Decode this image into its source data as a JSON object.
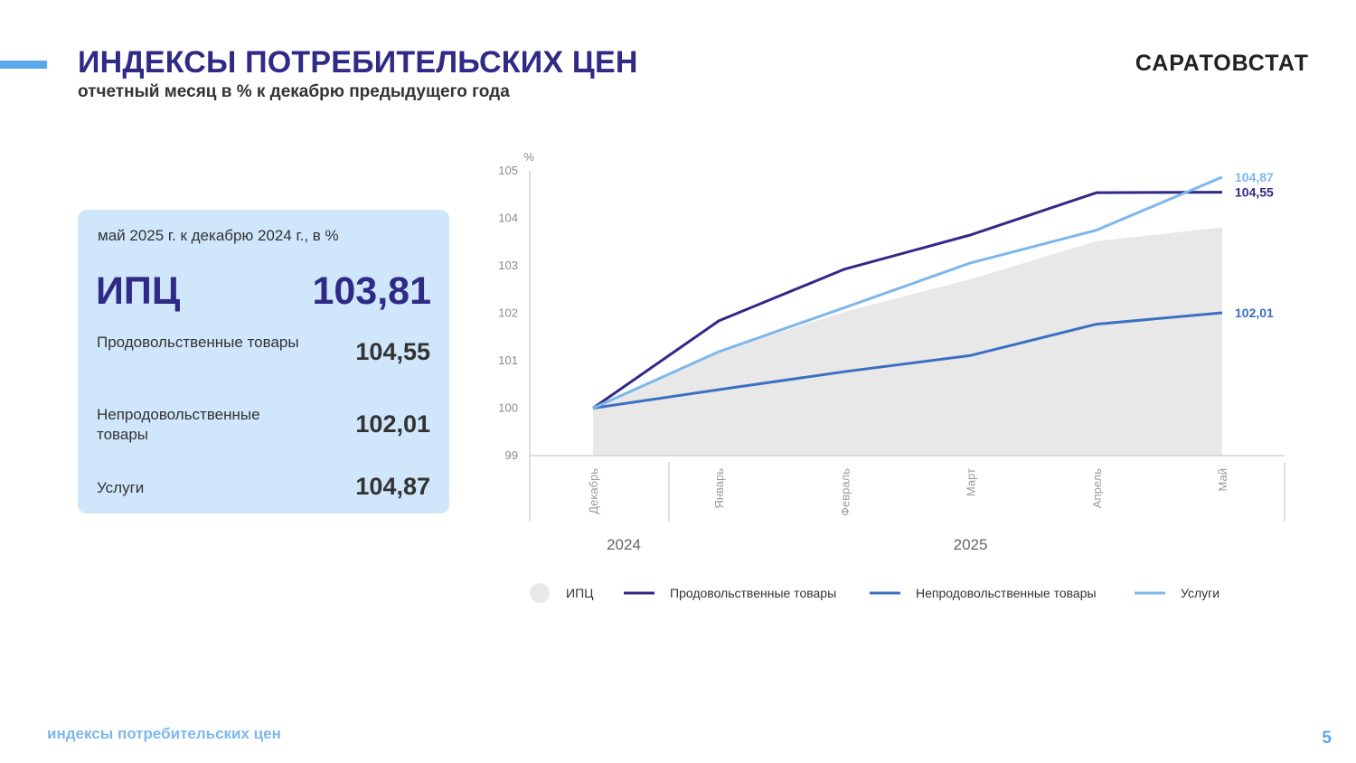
{
  "header": {
    "title": "ИНДЕКСЫ ПОТРЕБИТЕЛЬСКИХ ЦЕН",
    "subtitle": "отчетный месяц в % к декабрю предыдущего года",
    "brand": "САРАТОВСТАТ"
  },
  "card": {
    "caption": "май 2025 г. к декабрю 2024 г., в %",
    "cpi_label": "ИПЦ",
    "cpi_value": "103,81",
    "rows": [
      {
        "label": "Продовольственные товары",
        "value": "104,55"
      },
      {
        "label": "Непродовольственные товары",
        "value": "102,01"
      },
      {
        "label": "Услуги",
        "value": "104,87"
      }
    ]
  },
  "chart_data": {
    "type": "line",
    "ylabel": "%",
    "ylim": [
      99,
      105
    ],
    "yticks": [
      "99",
      "100",
      "101",
      "102",
      "103",
      "104",
      "105"
    ],
    "categories": [
      "Декабрь",
      "Январь",
      "Февраль",
      "Март",
      "Апрель",
      "Май"
    ],
    "years": [
      {
        "label": "2024",
        "months": [
          "Декабрь"
        ]
      },
      {
        "label": "2025",
        "months": [
          "Январь",
          "Февраль",
          "Март",
          "Апрель",
          "Май"
        ]
      }
    ],
    "series": [
      {
        "name": "ИПЦ",
        "kind": "area",
        "color": "#e8e8e8",
        "values": [
          100,
          101.19,
          102.03,
          102.72,
          103.52,
          103.81
        ]
      },
      {
        "name": "Продовольственные товары",
        "kind": "line",
        "color": "#2f2a86",
        "values": [
          100,
          101.84,
          102.93,
          103.65,
          104.54,
          104.55
        ],
        "end_label": "104,55"
      },
      {
        "name": "Непродовольственные товары",
        "kind": "line",
        "color": "#3b6fc2",
        "values": [
          100,
          100.39,
          100.77,
          101.11,
          101.77,
          102.01
        ],
        "end_label": "102,01"
      },
      {
        "name": "Услуги",
        "kind": "line",
        "color": "#7db7ec",
        "values": [
          100,
          101.19,
          102.12,
          103.06,
          103.75,
          104.87
        ],
        "end_label": "104,87"
      }
    ],
    "legend_position": "bottom",
    "grid": false
  },
  "footer": {
    "text": "индексы потребительских цен",
    "page": "5"
  }
}
